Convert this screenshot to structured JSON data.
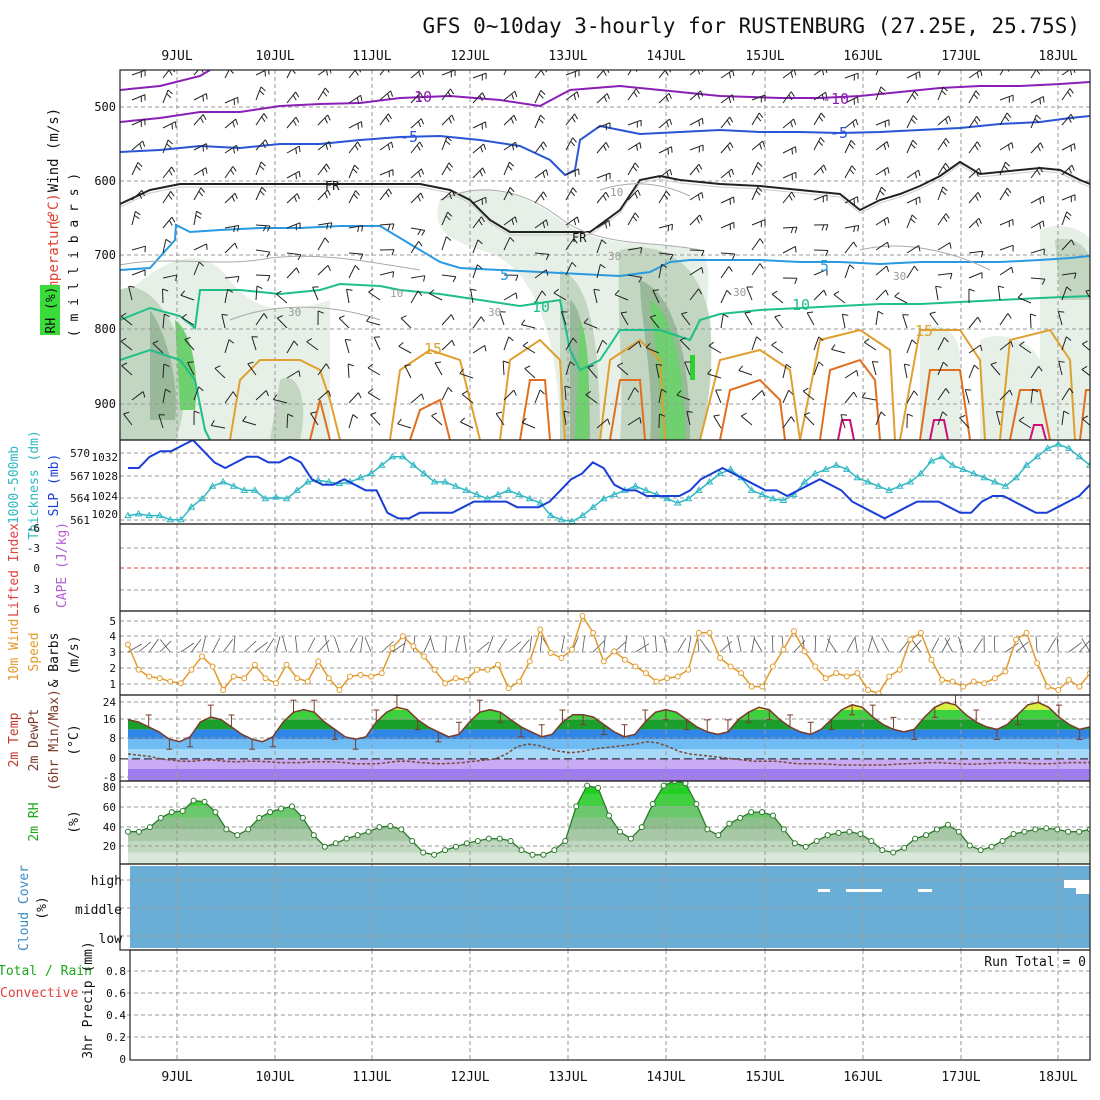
{
  "header": {
    "title": "GFS 0~10day 3-hourly for RUSTENBURG (27.25E, 25.75S)"
  },
  "dates": [
    "9JUL",
    "10JUL",
    "11JUL",
    "12JUL",
    "13JUL",
    "14JUL",
    "15JUL",
    "16JUL",
    "17JUL",
    "18JUL"
  ],
  "panels": {
    "upper": {
      "ylabel_parts": [
        {
          "text": "Wind (m/s)",
          "color": "#000000"
        },
        {
          "text": "Temperature",
          "color": "#3b3bd6"
        },
        {
          "text": "(°C)",
          "color": "#e0402f"
        },
        {
          "text": "Temperature",
          "color": "#e0402f"
        }
      ],
      "label_wind": "Wind (m/s)",
      "label_temp_a": "Temperature",
      "label_temp_b": "(°C)",
      "label_rh": "RH (%)",
      "label_mb": "( m i l l i b a r s )",
      "yticks": [
        "500",
        "600",
        "700",
        "800",
        "900"
      ],
      "contour_labels": {
        "t_m10": "-10",
        "t_m5": "-5",
        "fr": "FR",
        "t_5": "5",
        "t_10": "10",
        "t_15": "15",
        "rh_10": "10",
        "rh_30": "30"
      }
    },
    "thickness": {
      "label_thk": "1000-500mb",
      "label_thk2": "Thickness (dm)",
      "label_slp": "SLP (mb)",
      "yticks_left": [
        "570",
        "567",
        "564",
        "561"
      ],
      "yticks_right": [
        "1032",
        "1028",
        "1024",
        "1020"
      ]
    },
    "lifted": {
      "label_li": "Lifted Index",
      "label_cape": "CAPE (J/kg)",
      "yticks": [
        "-6",
        "-3",
        "0",
        "3",
        "6"
      ]
    },
    "wind10": {
      "label_a": "10m Wind",
      "label_b": "Speed",
      "label_c": "& Barbs",
      "label_d": "(m/s)",
      "yticks": [
        "5",
        "4",
        "3",
        "2",
        "1"
      ]
    },
    "temp2m": {
      "label_a": "2m Temp",
      "label_b": "2m DewPt",
      "label_c": "(6hr Min/Max)",
      "label_d": "(°C)",
      "yticks": [
        "24",
        "16",
        "8",
        "0",
        "-8"
      ]
    },
    "rh2m": {
      "label_a": "2m RH",
      "label_b": "(%)",
      "yticks": [
        "80",
        "60",
        "40",
        "20"
      ]
    },
    "cloud": {
      "label_a": "Cloud Cover",
      "label_b": "(%)",
      "levels": [
        "high",
        "middle",
        "low"
      ]
    },
    "precip": {
      "label_a": "Total / Rain",
      "label_b": "Convective",
      "label_c": "3hr Precip (mm)",
      "run_total": "Run Total = 0",
      "yticks": [
        "0.8",
        "0.6",
        "0.4",
        "0.2",
        "0"
      ]
    }
  },
  "colors": {
    "slp": "#1a3fd6",
    "thickness": "#2fb8c4",
    "wind10": "#e39a2a",
    "dewpt": "#7a4a3a",
    "rh2m_line": "#2a7a2a",
    "cloud": "#6aaed6",
    "purple": "#8a1fb8",
    "blue": "#2a55d6",
    "lightblue": "#2a9ae0",
    "green": "#1fbf8a",
    "orange": "#e0a030",
    "darkorange": "#e07020",
    "magenta": "#d0107a"
  },
  "chart_data": [
    {
      "type": "line",
      "name": "thickness-slp",
      "x_labels": [
        "9JUL",
        "10JUL",
        "11JUL",
        "12JUL",
        "13JUL",
        "14JUL",
        "15JUL",
        "16JUL",
        "17JUL",
        "18JUL"
      ],
      "ylim_left": [
        561,
        571
      ],
      "ylim_right": [
        1019,
        1034
      ],
      "series": [
        {
          "name": "1000-500mb Thickness (dm)",
          "axis": "left",
          "values": [
            562,
            562.2,
            562,
            562,
            561.5,
            561.5,
            563,
            564,
            565.5,
            566,
            565.5,
            565,
            565,
            564,
            564.2,
            564,
            565,
            566,
            566.2,
            566,
            565.8,
            566,
            566.5,
            567,
            568,
            569,
            569,
            568,
            567,
            566,
            566,
            565.5,
            565,
            564.5,
            564,
            564.5,
            565,
            564.5,
            564,
            563.5,
            562,
            561.5,
            561.3,
            562,
            563,
            564,
            564.5,
            565,
            565.5,
            565,
            564.5,
            564,
            563.5,
            564,
            565,
            566,
            567,
            567.5,
            566.5,
            565,
            564.5,
            564,
            563.8,
            564.5,
            566,
            567,
            567.5,
            568,
            567.5,
            566.5,
            566,
            565.5,
            565,
            565.5,
            566,
            567,
            568.5,
            569,
            568,
            567.5,
            567,
            566.5,
            566,
            565.5,
            566.5,
            568,
            569,
            570,
            570.5,
            570,
            569,
            568
          ]
        },
        {
          "name": "SLP (mb)",
          "axis": "right",
          "values": [
            1029,
            1029,
            1031,
            1032,
            1032,
            1033,
            1034,
            1032,
            1030,
            1029,
            1030,
            1031,
            1031,
            1030,
            1030,
            1031,
            1030,
            1027,
            1026,
            1026,
            1027,
            1026,
            1025,
            1025,
            1021,
            1020,
            1020,
            1021,
            1021,
            1021,
            1021,
            1022,
            1023,
            1023,
            1023,
            1023,
            1022,
            1022,
            1022,
            1023,
            1025,
            1027,
            1028,
            1030,
            1029,
            1026,
            1025,
            1025,
            1024,
            1024,
            1024,
            1024,
            1025,
            1027,
            1028,
            1029,
            1028,
            1027,
            1026,
            1025,
            1025,
            1024,
            1025,
            1026,
            1027,
            1026,
            1025,
            1023,
            1022,
            1021,
            1020,
            1021,
            1022,
            1023,
            1023,
            1023,
            1022,
            1021,
            1021,
            1023,
            1024,
            1024,
            1023,
            1022,
            1021,
            1021,
            1022,
            1023,
            1024,
            1026
          ]
        }
      ]
    },
    {
      "type": "line",
      "name": "lifted-index",
      "ylim": [
        -6,
        6
      ],
      "series": []
    },
    {
      "type": "line",
      "name": "10m-wind-speed",
      "ylim": [
        0.5,
        5.5
      ],
      "series": [
        {
          "name": "10m Wind Speed (m/s)",
          "values": [
            3.5,
            2,
            1.6,
            1.5,
            1.3,
            1.2,
            2,
            2.8,
            2.2,
            0.8,
            1.6,
            1.5,
            2.3,
            1.5,
            1.2,
            2.3,
            1.5,
            1.3,
            2.5,
            1.5,
            0.8,
            1.6,
            1.7,
            1.6,
            1.8,
            3.3,
            4,
            3.4,
            2.8,
            2,
            1.2,
            1.5,
            1.4,
            2,
            2,
            2.3,
            0.9,
            1.3,
            2.5,
            4.4,
            3,
            2.7,
            3.2,
            5.2,
            4.2,
            2.5,
            3.1,
            2.6,
            2.2,
            1.8,
            1.3,
            1.5,
            1.6,
            2,
            4.2,
            4.2,
            2.7,
            2.2,
            1.8,
            1,
            1,
            2.2,
            3.2,
            4.3,
            3.1,
            2.2,
            1.5,
            1.8,
            1.6,
            1.8,
            0.8,
            0.6,
            1.6,
            2,
            3.8,
            4.2,
            2.6,
            1.4,
            1.3,
            1,
            1.3,
            1.2,
            1.5,
            1.9,
            3.8,
            4.2,
            2.4,
            1,
            0.8,
            1.4,
            1,
            1.8
          ]
        }
      ]
    },
    {
      "type": "area",
      "name": "2m-temp-dewpt",
      "ylim": [
        -9,
        26
      ],
      "series": [
        {
          "name": "2m Temp (°C)",
          "values": [
            16,
            15,
            13,
            11,
            8,
            7,
            9,
            15,
            17,
            16,
            13,
            10,
            8,
            7,
            9,
            15,
            19,
            20,
            19,
            15,
            12,
            9,
            8,
            9,
            15,
            19,
            21,
            20,
            16,
            13,
            11,
            9,
            10,
            15,
            19,
            20,
            19,
            16,
            13,
            11,
            9,
            10,
            15,
            18,
            18,
            17,
            14,
            11,
            9,
            10,
            15,
            19,
            20,
            19,
            16,
            13,
            11,
            10,
            11,
            16,
            19,
            21,
            20,
            16,
            13,
            11,
            10,
            12,
            16,
            20,
            22,
            21,
            17,
            14,
            12,
            11,
            12,
            17,
            21,
            23,
            22,
            18,
            15,
            13,
            12,
            14,
            18,
            22,
            23,
            21,
            17,
            14,
            12,
            13
          ]
        },
        {
          "name": "2m DewPt (°C)",
          "values": [
            2,
            1.5,
            1,
            0,
            -0.5,
            -1,
            -1,
            -0.5,
            -0.5,
            -1,
            -1.2,
            -1,
            -1,
            -1.2,
            -1.5,
            -1.5,
            -1.5,
            -1.2,
            -1.2,
            -1.2,
            -1.5,
            -2,
            -2,
            -2,
            -1.5,
            -1,
            -1,
            -1.5,
            -1.8,
            -2,
            -1.8,
            -1.5,
            -1,
            -0.5,
            0,
            2,
            5,
            6,
            5.5,
            4,
            3,
            2.5,
            3,
            4,
            4.5,
            5,
            5.5,
            6,
            7,
            6.5,
            5,
            3,
            2,
            1.5,
            1,
            0.5,
            0,
            -0.5,
            -1,
            -1,
            -1,
            -1.5,
            -2,
            -2,
            -2,
            -2.2,
            -2.5,
            -2.5,
            -2.5,
            -2.5,
            -2.5,
            -2.2,
            -2,
            -1.8,
            -1.5,
            -1.5,
            -1.8,
            -2,
            -2.2,
            -2,
            -1.8,
            -1.5,
            -1.5,
            -1.8,
            -2,
            -2,
            -1.8,
            -1.5,
            -1.5,
            -1.5
          ]
        }
      ]
    },
    {
      "type": "area",
      "name": "2m-rh",
      "ylim": [
        10,
        82
      ],
      "series": [
        {
          "name": "2m RH (%)",
          "values": [
            38,
            38,
            42,
            50,
            55,
            56,
            65,
            64,
            55,
            40,
            35,
            40,
            50,
            55,
            58,
            60,
            50,
            35,
            25,
            28,
            32,
            35,
            38,
            42,
            43,
            40,
            30,
            20,
            18,
            22,
            25,
            28,
            30,
            32,
            32,
            30,
            22,
            18,
            18,
            22,
            30,
            60,
            78,
            76,
            52,
            38,
            32,
            42,
            62,
            78,
            82,
            80,
            62,
            40,
            35,
            45,
            50,
            55,
            55,
            52,
            40,
            28,
            25,
            30,
            35,
            37,
            38,
            36,
            30,
            22,
            20,
            24,
            32,
            35,
            40,
            44,
            38,
            26,
            22,
            25,
            30,
            36,
            38,
            40,
            41,
            40,
            38,
            38,
            40
          ]
        }
      ]
    },
    {
      "type": "area",
      "name": "cloud-cover",
      "levels": [
        "high",
        "middle",
        "low"
      ],
      "ylim": [
        0,
        100
      ],
      "series": []
    },
    {
      "type": "bar",
      "name": "3hr-precip",
      "ylim": [
        0,
        1
      ],
      "series": []
    }
  ]
}
